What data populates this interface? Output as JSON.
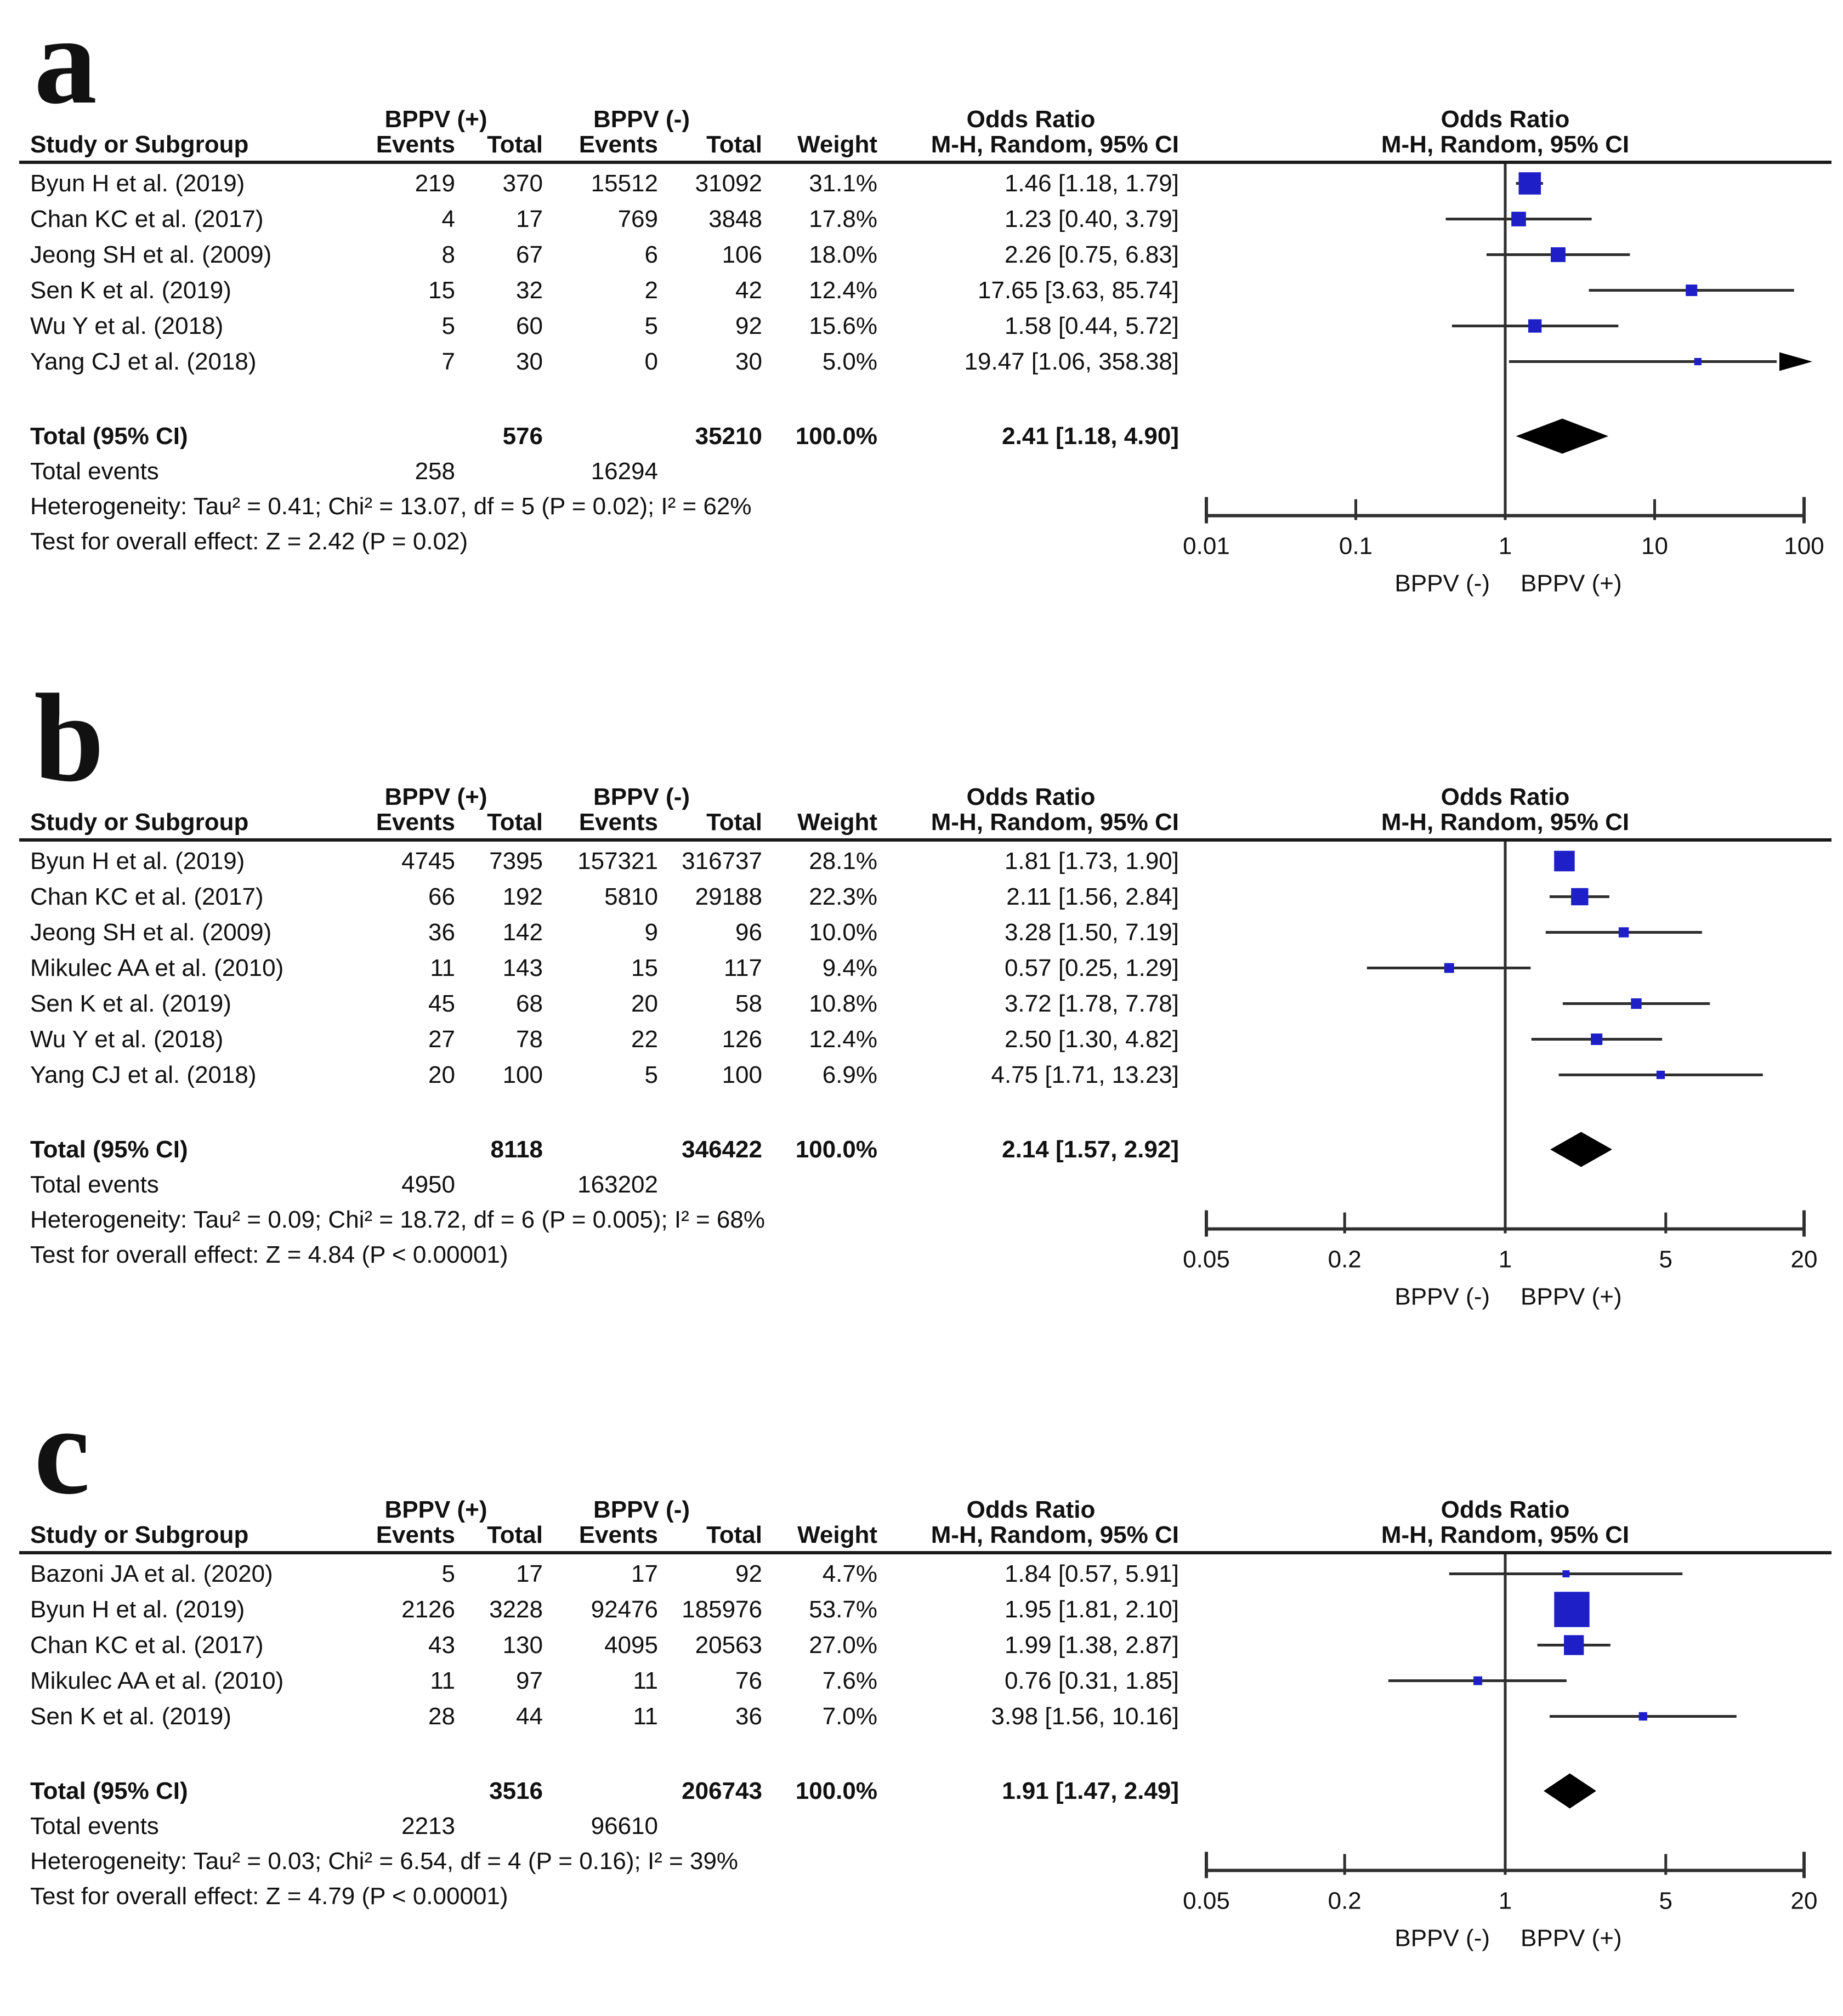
{
  "headers": {
    "group_pos": "BPPV (+)",
    "group_neg": "BPPV (-)",
    "study": "Study or Subgroup",
    "events": "Events",
    "total": "Total",
    "weight": "Weight",
    "or_title": "Odds Ratio",
    "mh_ci": "M-H, Random, 95% CI"
  },
  "colors": {
    "square": "#1f1fc8",
    "line": "#2f2f2f",
    "diamond": "#000000",
    "rule": "#1a1a1a",
    "text": "#111111"
  },
  "chart_data": [
    {
      "type": "forest",
      "label": "a",
      "or_title": "Odds Ratio",
      "model": "M-H, Random, 95% CI",
      "studies": [
        {
          "name": "Byun H et al. (2019)",
          "events_pos": "219",
          "total_pos": "370",
          "events_neg": "15512",
          "total_neg": "31092",
          "weight": "31.1%",
          "or_ci": "1.46 [1.18, 1.79]",
          "or": 1.46,
          "lo": 1.18,
          "hi": 1.79,
          "w": 31.1
        },
        {
          "name": "Chan KC et al. (2017)",
          "events_pos": "4",
          "total_pos": "17",
          "events_neg": "769",
          "total_neg": "3848",
          "weight": "17.8%",
          "or_ci": "1.23 [0.40, 3.79]",
          "or": 1.23,
          "lo": 0.4,
          "hi": 3.79,
          "w": 17.8
        },
        {
          "name": "Jeong SH et al. (2009)",
          "events_pos": "8",
          "total_pos": "67",
          "events_neg": "6",
          "total_neg": "106",
          "weight": "18.0%",
          "or_ci": "2.26 [0.75, 6.83]",
          "or": 2.26,
          "lo": 0.75,
          "hi": 6.83,
          "w": 18.0
        },
        {
          "name": "Sen K et al. (2019)",
          "events_pos": "15",
          "total_pos": "32",
          "events_neg": "2",
          "total_neg": "42",
          "weight": "12.4%",
          "or_ci": "17.65 [3.63, 85.74]",
          "or": 17.65,
          "lo": 3.63,
          "hi": 85.74,
          "w": 12.4
        },
        {
          "name": "Wu Y et al. (2018)",
          "events_pos": "5",
          "total_pos": "60",
          "events_neg": "5",
          "total_neg": "92",
          "weight": "15.6%",
          "or_ci": "1.58 [0.44, 5.72]",
          "or": 1.58,
          "lo": 0.44,
          "hi": 5.72,
          "w": 15.6
        },
        {
          "name": "Yang CJ et al. (2018)",
          "events_pos": "7",
          "total_pos": "30",
          "events_neg": "0",
          "total_neg": "30",
          "weight": "5.0%",
          "or_ci": "19.47 [1.06, 358.38]",
          "or": 19.47,
          "lo": 1.06,
          "hi": 358.38,
          "w": 5.0
        }
      ],
      "total": {
        "label": "Total (95% CI)",
        "total_pos": "576",
        "total_neg": "35210",
        "weight": "100.0%",
        "or_ci": "2.41 [1.18, 4.90]",
        "or": 2.41,
        "lo": 1.18,
        "hi": 4.9
      },
      "total_events": {
        "label": "Total events",
        "pos": "258",
        "neg": "16294"
      },
      "heterogeneity": "Heterogeneity: Tau² = 0.41; Chi² = 13.07, df = 5 (P = 0.02); I² = 62%",
      "overall_effect": "Test for overall effect: Z = 2.42 (P = 0.02)",
      "axis": {
        "min": 0.01,
        "max": 100,
        "ticks": [
          {
            "label": "0.01",
            "value": 0.01
          },
          {
            "label": "0.1",
            "value": 0.1
          },
          {
            "label": "1",
            "value": 1
          },
          {
            "label": "10",
            "value": 10
          },
          {
            "label": "100",
            "value": 100
          }
        ],
        "label_neg": "BPPV (-)",
        "label_pos": "BPPV (+)"
      }
    },
    {
      "type": "forest",
      "label": "b",
      "or_title": "Odds Ratio",
      "model": "M-H, Random, 95% CI",
      "studies": [
        {
          "name": "Byun H et al. (2019)",
          "events_pos": "4745",
          "total_pos": "7395",
          "events_neg": "157321",
          "total_neg": "316737",
          "weight": "28.1%",
          "or_ci": "1.81 [1.73, 1.90]",
          "or": 1.81,
          "lo": 1.73,
          "hi": 1.9,
          "w": 28.1
        },
        {
          "name": "Chan KC et al. (2017)",
          "events_pos": "66",
          "total_pos": "192",
          "events_neg": "5810",
          "total_neg": "29188",
          "weight": "22.3%",
          "or_ci": "2.11 [1.56, 2.84]",
          "or": 2.11,
          "lo": 1.56,
          "hi": 2.84,
          "w": 22.3
        },
        {
          "name": "Jeong SH et al. (2009)",
          "events_pos": "36",
          "total_pos": "142",
          "events_neg": "9",
          "total_neg": "96",
          "weight": "10.0%",
          "or_ci": "3.28 [1.50, 7.19]",
          "or": 3.28,
          "lo": 1.5,
          "hi": 7.19,
          "w": 10.0
        },
        {
          "name": "Mikulec AA et al. (2010)",
          "events_pos": "11",
          "total_pos": "143",
          "events_neg": "15",
          "total_neg": "117",
          "weight": "9.4%",
          "or_ci": "0.57 [0.25, 1.29]",
          "or": 0.57,
          "lo": 0.25,
          "hi": 1.29,
          "w": 9.4
        },
        {
          "name": "Sen K et al. (2019)",
          "events_pos": "45",
          "total_pos": "68",
          "events_neg": "20",
          "total_neg": "58",
          "weight": "10.8%",
          "or_ci": "3.72 [1.78, 7.78]",
          "or": 3.72,
          "lo": 1.78,
          "hi": 7.78,
          "w": 10.8
        },
        {
          "name": "Wu Y et al. (2018)",
          "events_pos": "27",
          "total_pos": "78",
          "events_neg": "22",
          "total_neg": "126",
          "weight": "12.4%",
          "or_ci": "2.50 [1.30, 4.82]",
          "or": 2.5,
          "lo": 1.3,
          "hi": 4.82,
          "w": 12.4
        },
        {
          "name": "Yang CJ et al. (2018)",
          "events_pos": "20",
          "total_pos": "100",
          "events_neg": "5",
          "total_neg": "100",
          "weight": "6.9%",
          "or_ci": "4.75 [1.71, 13.23]",
          "or": 4.75,
          "lo": 1.71,
          "hi": 13.23,
          "w": 6.9
        }
      ],
      "total": {
        "label": "Total (95% CI)",
        "total_pos": "8118",
        "total_neg": "346422",
        "weight": "100.0%",
        "or_ci": "2.14 [1.57, 2.92]",
        "or": 2.14,
        "lo": 1.57,
        "hi": 2.92
      },
      "total_events": {
        "label": "Total events",
        "pos": "4950",
        "neg": "163202"
      },
      "heterogeneity": "Heterogeneity: Tau² = 0.09; Chi² = 18.72, df = 6 (P = 0.005); I² = 68%",
      "overall_effect": "Test for overall effect: Z = 4.84 (P < 0.00001)",
      "axis": {
        "min": 0.05,
        "max": 20,
        "ticks": [
          {
            "label": "0.05",
            "value": 0.05
          },
          {
            "label": "0.2",
            "value": 0.2
          },
          {
            "label": "1",
            "value": 1
          },
          {
            "label": "5",
            "value": 5
          },
          {
            "label": "20",
            "value": 20
          }
        ],
        "label_neg": "BPPV (-)",
        "label_pos": "BPPV (+)"
      }
    },
    {
      "type": "forest",
      "label": "c",
      "or_title": "Odds Ratio",
      "model": "M-H, Random, 95% CI",
      "studies": [
        {
          "name": "Bazoni JA et al. (2020)",
          "events_pos": "5",
          "total_pos": "17",
          "events_neg": "17",
          "total_neg": "92",
          "weight": "4.7%",
          "or_ci": "1.84 [0.57, 5.91]",
          "or": 1.84,
          "lo": 0.57,
          "hi": 5.91,
          "w": 4.7
        },
        {
          "name": "Byun H et al. (2019)",
          "events_pos": "2126",
          "total_pos": "3228",
          "events_neg": "92476",
          "total_neg": "185976",
          "weight": "53.7%",
          "or_ci": "1.95 [1.81, 2.10]",
          "or": 1.95,
          "lo": 1.81,
          "hi": 2.1,
          "w": 53.7
        },
        {
          "name": "Chan KC et al. (2017)",
          "events_pos": "43",
          "total_pos": "130",
          "events_neg": "4095",
          "total_neg": "20563",
          "weight": "27.0%",
          "or_ci": "1.99 [1.38, 2.87]",
          "or": 1.99,
          "lo": 1.38,
          "hi": 2.87,
          "w": 27.0
        },
        {
          "name": "Mikulec AA et al. (2010)",
          "events_pos": "11",
          "total_pos": "97",
          "events_neg": "11",
          "total_neg": "76",
          "weight": "7.6%",
          "or_ci": "0.76 [0.31, 1.85]",
          "or": 0.76,
          "lo": 0.31,
          "hi": 1.85,
          "w": 7.6
        },
        {
          "name": "Sen K et al. (2019)",
          "events_pos": "28",
          "total_pos": "44",
          "events_neg": "11",
          "total_neg": "36",
          "weight": "7.0%",
          "or_ci": "3.98 [1.56, 10.16]",
          "or": 3.98,
          "lo": 1.56,
          "hi": 10.16,
          "w": 7.0
        }
      ],
      "total": {
        "label": "Total (95% CI)",
        "total_pos": "3516",
        "total_neg": "206743",
        "weight": "100.0%",
        "or_ci": "1.91 [1.47, 2.49]",
        "or": 1.91,
        "lo": 1.47,
        "hi": 2.49
      },
      "total_events": {
        "label": "Total events",
        "pos": "2213",
        "neg": "96610"
      },
      "heterogeneity": "Heterogeneity: Tau² = 0.03; Chi² = 6.54, df = 4 (P = 0.16); I² = 39%",
      "overall_effect": "Test for overall effect: Z = 4.79 (P < 0.00001)",
      "axis": {
        "min": 0.05,
        "max": 20,
        "ticks": [
          {
            "label": "0.05",
            "value": 0.05
          },
          {
            "label": "0.2",
            "value": 0.2
          },
          {
            "label": "1",
            "value": 1
          },
          {
            "label": "5",
            "value": 5
          },
          {
            "label": "20",
            "value": 20
          }
        ],
        "label_neg": "BPPV (-)",
        "label_pos": "BPPV (+)"
      }
    }
  ]
}
